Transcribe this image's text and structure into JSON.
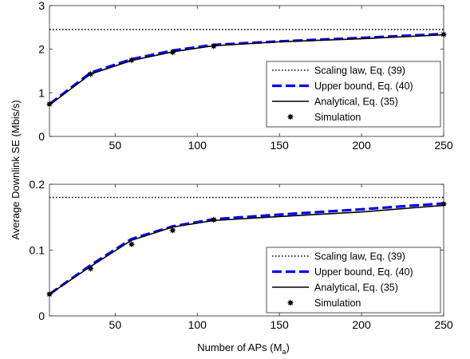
{
  "figure": {
    "ylabel": "Average Downlink SE (Mbis/s)",
    "xlabel_main": "Number of APs (M",
    "xlabel_sub": "a",
    "xlabel_close": ")"
  },
  "legend_labels": [
    "Scaling law,  Eq. (39)",
    "Upper bound, Eq. (40)",
    "Analytical, Eq. (35)",
    "Simulation"
  ],
  "colors": {
    "scaling": "#000000",
    "upper": "#0000ff",
    "analytical": "#000000",
    "simulation": "#000000"
  },
  "chart_data": [
    {
      "type": "line",
      "title": "",
      "xlim": [
        10,
        250
      ],
      "ylim": [
        0,
        3
      ],
      "xticks": [
        50,
        100,
        150,
        200,
        250
      ],
      "yticks": [
        0,
        1,
        2,
        3
      ],
      "grid": false,
      "legend_position": "bottom-right",
      "series": [
        {
          "name": "Scaling law,  Eq. (39)",
          "style": "dotted",
          "x": [
            10,
            250
          ],
          "y": [
            2.45,
            2.45
          ]
        },
        {
          "name": "Upper bound, Eq. (40)",
          "style": "dashed",
          "x": [
            10,
            35,
            60,
            85,
            110,
            150,
            200,
            250
          ],
          "y": [
            0.74,
            1.46,
            1.77,
            1.97,
            2.1,
            2.18,
            2.26,
            2.35
          ]
        },
        {
          "name": "Analytical, Eq. (35)",
          "style": "solid",
          "x": [
            10,
            35,
            60,
            85,
            110,
            150,
            200,
            250
          ],
          "y": [
            0.72,
            1.43,
            1.74,
            1.94,
            2.08,
            2.17,
            2.24,
            2.33
          ]
        },
        {
          "name": "Simulation",
          "style": "markers",
          "x": [
            10,
            35,
            60,
            85,
            110,
            250
          ],
          "y": [
            0.74,
            1.43,
            1.75,
            1.93,
            2.07,
            2.34
          ]
        }
      ]
    },
    {
      "type": "line",
      "title": "",
      "xlim": [
        10,
        250
      ],
      "ylim": [
        0,
        0.2
      ],
      "xticks": [
        50,
        100,
        150,
        200,
        250
      ],
      "yticks": [
        0,
        0.1,
        0.2
      ],
      "grid": false,
      "legend_position": "bottom-right",
      "series": [
        {
          "name": "Scaling law,  Eq. (39)",
          "style": "dotted",
          "x": [
            10,
            250
          ],
          "y": [
            0.18,
            0.18
          ]
        },
        {
          "name": "Upper bound, Eq. (40)",
          "style": "dashed",
          "x": [
            10,
            35,
            60,
            85,
            110,
            150,
            200,
            250
          ],
          "y": [
            0.033,
            0.077,
            0.117,
            0.136,
            0.147,
            0.154,
            0.162,
            0.171
          ]
        },
        {
          "name": "Analytical, Eq. (35)",
          "style": "solid",
          "x": [
            10,
            35,
            60,
            85,
            110,
            150,
            200,
            250
          ],
          "y": [
            0.033,
            0.075,
            0.115,
            0.135,
            0.145,
            0.151,
            0.158,
            0.168
          ]
        },
        {
          "name": "Simulation",
          "style": "markers",
          "x": [
            10,
            35,
            60,
            85,
            110,
            250
          ],
          "y": [
            0.033,
            0.072,
            0.109,
            0.13,
            0.146,
            0.17
          ]
        }
      ]
    }
  ]
}
